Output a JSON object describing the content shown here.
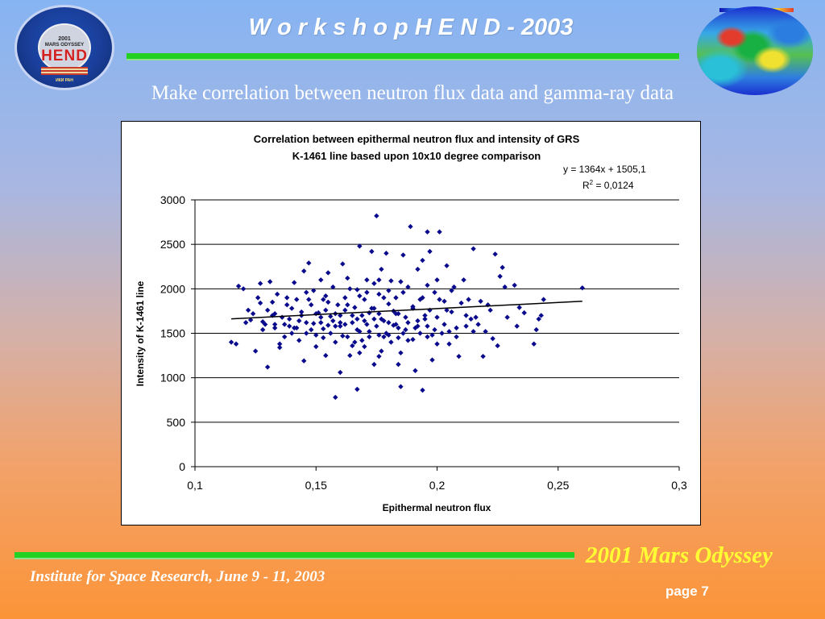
{
  "header": {
    "title": "W o r k s h o p   H E N D - 2003",
    "subtitle": "Make correlation between neutron flux data and gamma-ray data"
  },
  "logo": {
    "year": "2001",
    "mission": "MARS ODYSSEY",
    "name": "HEND",
    "sub": "ИКИ РАН"
  },
  "footer": {
    "institute": "Institute for Space Research, June 9 - 11, 2003",
    "brand": "2001 Mars Odyssey",
    "page": "page 7"
  },
  "colors": {
    "rule": "#22d122",
    "point": "#0a0a8c",
    "brand": "#ffff33"
  },
  "chart_data": {
    "type": "scatter",
    "title": [
      "Correlation between epithermal neutron flux and intensity of GRS",
      "K-1461 line based upon 10x10 degree comparison"
    ],
    "xlabel": "Epithermal neutron flux",
    "ylabel": "Intensity of K-1461 line",
    "xlim": [
      0.1,
      0.3
    ],
    "ylim": [
      0,
      3000
    ],
    "x_ticks": [
      "0,1",
      "0,15",
      "0,2",
      "0,25",
      "0,3"
    ],
    "y_ticks": [
      "0",
      "500",
      "1000",
      "1500",
      "2000",
      "2500",
      "3000"
    ],
    "grid": "horizontal",
    "trendline": {
      "slope": 1364,
      "intercept": 1505.1,
      "equation": "y = 1364x + 1505,1",
      "r2_label": "R",
      "r2_sup": "2",
      "r2_value": " = 0,0124",
      "x_range": [
        0.115,
        0.26
      ]
    },
    "points": [
      [
        0.115,
        1400
      ],
      [
        0.117,
        1380
      ],
      [
        0.118,
        2030
      ],
      [
        0.12,
        2000
      ],
      [
        0.121,
        1620
      ],
      [
        0.122,
        1760
      ],
      [
        0.123,
        1650
      ],
      [
        0.124,
        1720
      ],
      [
        0.125,
        1300
      ],
      [
        0.126,
        1900
      ],
      [
        0.127,
        1840
      ],
      [
        0.127,
        2060
      ],
      [
        0.128,
        1630
      ],
      [
        0.129,
        1600
      ],
      [
        0.13,
        1120
      ],
      [
        0.13,
        1760
      ],
      [
        0.131,
        2080
      ],
      [
        0.132,
        1850
      ],
      [
        0.133,
        1560
      ],
      [
        0.133,
        1720
      ],
      [
        0.134,
        1940
      ],
      [
        0.135,
        1380
      ],
      [
        0.135,
        1340
      ],
      [
        0.136,
        1680
      ],
      [
        0.137,
        1600
      ],
      [
        0.138,
        1900
      ],
      [
        0.138,
        1820
      ],
      [
        0.139,
        1660
      ],
      [
        0.14,
        1500
      ],
      [
        0.14,
        1780
      ],
      [
        0.141,
        2070
      ],
      [
        0.142,
        1560
      ],
      [
        0.143,
        1420
      ],
      [
        0.143,
        1640
      ],
      [
        0.144,
        1700
      ],
      [
        0.145,
        1190
      ],
      [
        0.145,
        2200
      ],
      [
        0.146,
        1620
      ],
      [
        0.147,
        1880
      ],
      [
        0.147,
        2290
      ],
      [
        0.148,
        1540
      ],
      [
        0.149,
        1980
      ],
      [
        0.15,
        1480
      ],
      [
        0.15,
        1350
      ],
      [
        0.151,
        1730
      ],
      [
        0.152,
        1620
      ],
      [
        0.152,
        2100
      ],
      [
        0.153,
        1880
      ],
      [
        0.154,
        1250
      ],
      [
        0.154,
        1760
      ],
      [
        0.155,
        2180
      ],
      [
        0.156,
        1500
      ],
      [
        0.156,
        1690
      ],
      [
        0.157,
        2020
      ],
      [
        0.158,
        780
      ],
      [
        0.158,
        1400
      ],
      [
        0.159,
        1820
      ],
      [
        0.16,
        1060
      ],
      [
        0.16,
        1580
      ],
      [
        0.161,
        2280
      ],
      [
        0.162,
        1760
      ],
      [
        0.162,
        1900
      ],
      [
        0.163,
        1460
      ],
      [
        0.164,
        1250
      ],
      [
        0.164,
        2000
      ],
      [
        0.165,
        1620
      ],
      [
        0.166,
        1400
      ],
      [
        0.166,
        1790
      ],
      [
        0.167,
        870
      ],
      [
        0.167,
        1990
      ],
      [
        0.168,
        1520
      ],
      [
        0.168,
        2480
      ],
      [
        0.169,
        1700
      ],
      [
        0.17,
        1350
      ],
      [
        0.17,
        1880
      ],
      [
        0.171,
        1600
      ],
      [
        0.171,
        2100
      ],
      [
        0.172,
        1460
      ],
      [
        0.173,
        1780
      ],
      [
        0.173,
        2420
      ],
      [
        0.174,
        1150
      ],
      [
        0.174,
        2060
      ],
      [
        0.175,
        1580
      ],
      [
        0.175,
        2820
      ],
      [
        0.176,
        1720
      ],
      [
        0.176,
        1940
      ],
      [
        0.177,
        1300
      ],
      [
        0.177,
        2220
      ],
      [
        0.178,
        1640
      ],
      [
        0.179,
        1500
      ],
      [
        0.179,
        2400
      ],
      [
        0.18,
        1830
      ],
      [
        0.18,
        1980
      ],
      [
        0.181,
        1400
      ],
      [
        0.181,
        2090
      ],
      [
        0.182,
        1590
      ],
      [
        0.183,
        1900
      ],
      [
        0.183,
        1720
      ],
      [
        0.184,
        1450
      ],
      [
        0.185,
        900
      ],
      [
        0.185,
        1280
      ],
      [
        0.186,
        2380
      ],
      [
        0.187,
        1680
      ],
      [
        0.187,
        1540
      ],
      [
        0.188,
        2020
      ],
      [
        0.189,
        2700
      ],
      [
        0.19,
        1430
      ],
      [
        0.19,
        1780
      ],
      [
        0.191,
        1080
      ],
      [
        0.192,
        1580
      ],
      [
        0.192,
        2220
      ],
      [
        0.193,
        1880
      ],
      [
        0.194,
        860
      ],
      [
        0.194,
        2320
      ],
      [
        0.195,
        1660
      ],
      [
        0.196,
        1460
      ],
      [
        0.196,
        2640
      ],
      [
        0.197,
        1760
      ],
      [
        0.197,
        2420
      ],
      [
        0.198,
        1200
      ],
      [
        0.199,
        1960
      ],
      [
        0.2,
        1680
      ],
      [
        0.2,
        2100
      ],
      [
        0.201,
        2640
      ],
      [
        0.202,
        1500
      ],
      [
        0.203,
        1860
      ],
      [
        0.204,
        2260
      ],
      [
        0.205,
        1380
      ],
      [
        0.206,
        1740
      ],
      [
        0.207,
        2020
      ],
      [
        0.208,
        1560
      ],
      [
        0.209,
        1240
      ],
      [
        0.21,
        1840
      ],
      [
        0.211,
        2100
      ],
      [
        0.212,
        1700
      ],
      [
        0.213,
        1880
      ],
      [
        0.215,
        2450
      ],
      [
        0.216,
        1680
      ],
      [
        0.217,
        1600
      ],
      [
        0.218,
        1860
      ],
      [
        0.219,
        1240
      ],
      [
        0.221,
        1820
      ],
      [
        0.222,
        1760
      ],
      [
        0.223,
        1440
      ],
      [
        0.224,
        2390
      ],
      [
        0.225,
        1360
      ],
      [
        0.226,
        2140
      ],
      [
        0.227,
        2240
      ],
      [
        0.228,
        2020
      ],
      [
        0.229,
        1680
      ],
      [
        0.232,
        2040
      ],
      [
        0.233,
        1580
      ],
      [
        0.234,
        1790
      ],
      [
        0.236,
        1730
      ],
      [
        0.24,
        1380
      ],
      [
        0.241,
        1540
      ],
      [
        0.242,
        1660
      ],
      [
        0.243,
        1700
      ],
      [
        0.244,
        1880
      ],
      [
        0.26,
        2010
      ],
      [
        0.146,
        1960
      ],
      [
        0.152,
        1680
      ],
      [
        0.158,
        1580
      ],
      [
        0.163,
        1820
      ],
      [
        0.169,
        1420
      ],
      [
        0.171,
        1960
      ],
      [
        0.178,
        1900
      ],
      [
        0.184,
        1720
      ],
      [
        0.191,
        1560
      ],
      [
        0.198,
        1480
      ],
      [
        0.144,
        1740
      ],
      [
        0.149,
        1610
      ],
      [
        0.16,
        1700
      ],
      [
        0.167,
        1540
      ],
      [
        0.174,
        1660
      ],
      [
        0.18,
        1620
      ],
      [
        0.186,
        1500
      ],
      [
        0.192,
        1640
      ],
      [
        0.199,
        1540
      ],
      [
        0.132,
        1700
      ],
      [
        0.139,
        1580
      ],
      [
        0.155,
        1590
      ],
      [
        0.161,
        1470
      ],
      [
        0.172,
        1730
      ],
      [
        0.182,
        1750
      ],
      [
        0.188,
        1420
      ],
      [
        0.195,
        1700
      ],
      [
        0.203,
        1600
      ],
      [
        0.212,
        1580
      ],
      [
        0.137,
        1460
      ],
      [
        0.153,
        1550
      ],
      [
        0.165,
        1360
      ],
      [
        0.176,
        1480
      ],
      [
        0.184,
        1560
      ],
      [
        0.205,
        1520
      ],
      [
        0.141,
        1560
      ],
      [
        0.157,
        1640
      ],
      [
        0.17,
        1640
      ],
      [
        0.178,
        1460
      ],
      [
        0.19,
        1800
      ],
      [
        0.148,
        1820
      ],
      [
        0.155,
        1850
      ],
      [
        0.162,
        1600
      ],
      [
        0.168,
        1920
      ],
      [
        0.174,
        1780
      ],
      [
        0.186,
        1960
      ],
      [
        0.194,
        1900
      ],
      [
        0.201,
        1880
      ],
      [
        0.208,
        1460
      ],
      [
        0.214,
        1660
      ],
      [
        0.22,
        1520
      ],
      [
        0.142,
        1880
      ],
      [
        0.15,
        1720
      ],
      [
        0.158,
        1720
      ],
      [
        0.165,
        1700
      ],
      [
        0.172,
        1520
      ],
      [
        0.18,
        1480
      ],
      [
        0.188,
        1620
      ],
      [
        0.196,
        1580
      ],
      [
        0.204,
        1760
      ],
      [
        0.215,
        1520
      ],
      [
        0.176,
        1240
      ],
      [
        0.168,
        1280
      ],
      [
        0.184,
        1150
      ],
      [
        0.154,
        1920
      ],
      [
        0.163,
        2120
      ],
      [
        0.176,
        2100
      ],
      [
        0.185,
        2080
      ],
      [
        0.196,
        2040
      ],
      [
        0.206,
        1980
      ],
      [
        0.146,
        1500
      ],
      [
        0.153,
        1450
      ],
      [
        0.16,
        1620
      ],
      [
        0.167,
        1660
      ],
      [
        0.177,
        1660
      ],
      [
        0.183,
        1600
      ],
      [
        0.193,
        1500
      ],
      [
        0.2,
        1380
      ],
      [
        0.133,
        1600
      ],
      [
        0.128,
        1540
      ]
    ]
  }
}
